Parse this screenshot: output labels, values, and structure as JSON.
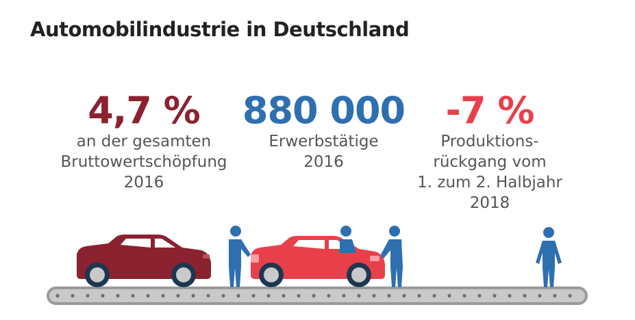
{
  "title": "Automobilindustrie in Deutschland",
  "stats": [
    {
      "value": "4,7 %",
      "lines": [
        "an der gesamten",
        "Bruttowertschöpfung",
        "2016"
      ],
      "color": "#8b2230"
    },
    {
      "value": "880 000",
      "lines": [
        "Erwerbstätige",
        "2016"
      ],
      "color": "#2e6fb0"
    },
    {
      "value": "-7 %",
      "lines": [
        "Produktions-",
        "rückgang vom",
        "1. zum 2. Halbjahr",
        "2018"
      ],
      "color": "#e8404b"
    }
  ],
  "colors": {
    "dark_car": "#8b2230",
    "light_car": "#e8404b",
    "worker": "#2e6fb0",
    "belt": "#9a9a9a",
    "wheel": "#1e3650"
  },
  "icons": [
    "car-icon",
    "worker-icon",
    "conveyor-belt-icon"
  ]
}
